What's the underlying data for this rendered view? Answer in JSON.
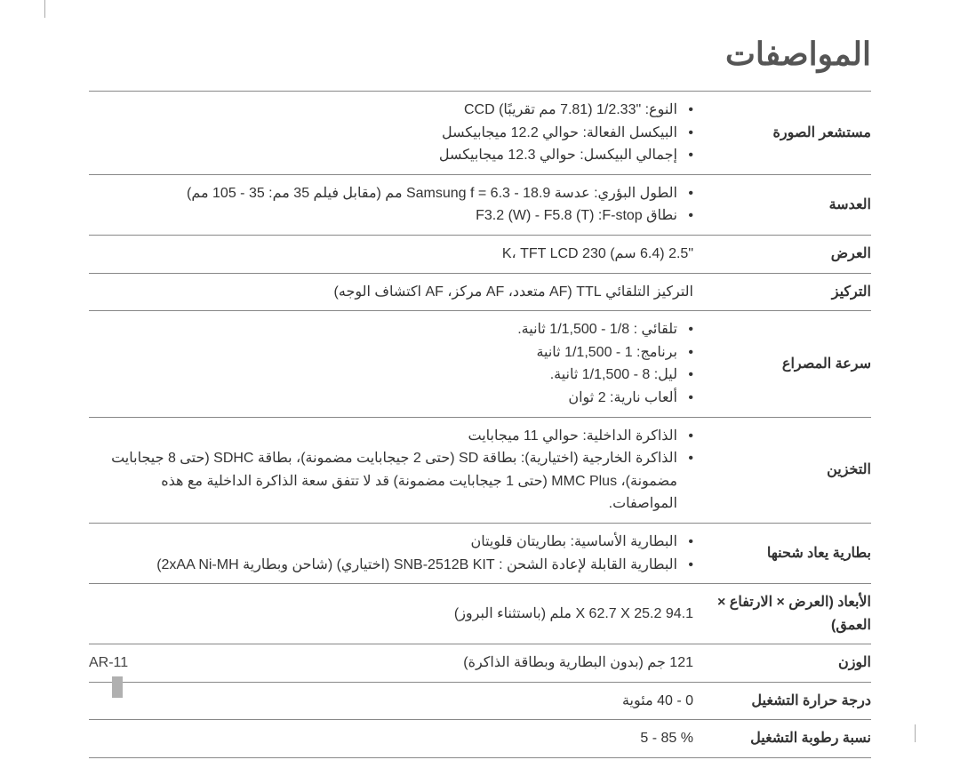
{
  "title": "المواصفات",
  "footer": "AR-11",
  "rows": [
    {
      "label": "مستشعر الصورة",
      "items": [
        "النوع: \"1/2.33 (7.81 مم تقريبًا) CCD",
        "البيكسل الفعالة: حوالي 12.2 ميجابيكسل",
        "إجمالي البيكسل: حوالي 12.3 ميجابيكسل"
      ]
    },
    {
      "label": "العدسة",
      "items": [
        "الطول البؤري: عدسة 18.9 - 6.3 = Samsung f مم (مقابل فيلم 35 مم: 35 - 105 مم)",
        "نطاق F3.2 (W) - F5.8 (T) :F-stop"
      ]
    },
    {
      "label": "العرض",
      "text": "\"2.5 (6.4 سم) 230 K، TFT LCD"
    },
    {
      "label": "التركيز",
      "text": "التركيز التلقائي TTL (AF متعدد، AF مركز، AF اكتشاف الوجه)"
    },
    {
      "label": "سرعة المصراع",
      "items": [
        "تلقائي : 1/8 - 1/1,500 ثانية.",
        "برنامج: 1 - 1/1,500 ثانية",
        "ليل: 8 - 1/1,500 ثانية.",
        "ألعاب نارية: 2 ثوان"
      ]
    },
    {
      "label": "التخزين",
      "items": [
        "الذاكرة الداخلية: حوالي 11 ميجابايت",
        "الذاكرة الخارجية (اختيارية): بطاقة SD (حتى 2 جيجابايت مضمونة)، بطاقة SDHC (حتى 8 جيجابايت مضمونة)، MMC Plus (حتى 1 جيجابايت مضمونة) قد لا تتفق سعة الذاكرة الداخلية مع هذه المواصفات."
      ]
    },
    {
      "label": "بطارية يعاد شحنها",
      "items": [
        "البطارية الأساسية: بطاريتان قلويتان",
        "البطارية القابلة لإعادة الشحن : SNB-2512B KIT (اختياري) (شاحن وبطارية 2xAA Ni-MH)"
      ]
    },
    {
      "label": "الأبعاد (العرض × الارتفاع × العمق)",
      "text": "94.1 X 62.7 X 25.2 ملم (باستثناء البروز)"
    },
    {
      "label": "الوزن",
      "text": "121 جم (بدون البطارية وبطاقة الذاكرة)"
    },
    {
      "label": "درجة حرارة التشغيل",
      "text": "0 - 40 مئوية"
    },
    {
      "label": "نسبة رطوبة التشغيل",
      "text": "% 85 - 5"
    }
  ]
}
